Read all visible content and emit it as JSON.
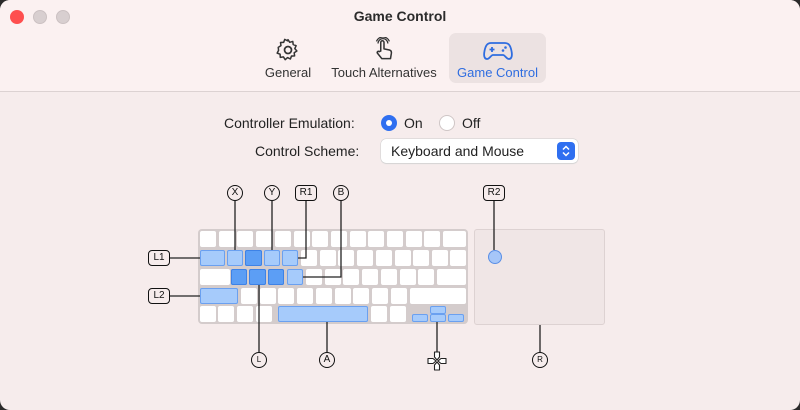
{
  "window": {
    "title": "Game Control"
  },
  "tabs": [
    {
      "label": "General",
      "icon": "gear-icon"
    },
    {
      "label": "Touch Alternatives",
      "icon": "hand-tap-icon"
    },
    {
      "label": "Game Control",
      "icon": "gamecontroller-icon",
      "selected": true
    }
  ],
  "emulation": {
    "label": "Controller Emulation:",
    "options": [
      "On",
      "Off"
    ],
    "selected": "On"
  },
  "scheme": {
    "label": "Control Scheme:",
    "value": "Keyboard and Mouse"
  },
  "mapping": {
    "x": "X",
    "y": "Y",
    "r1": "R1",
    "b": "B",
    "l1": "L1",
    "l2": "L2",
    "l_stick": "L",
    "a": "A",
    "r2": "R2",
    "r_stick": "R"
  },
  "colors": {
    "accent": "#2f6de0",
    "key_highlight": "#a6cbfb",
    "key_pressed": "#5c9ef5",
    "close": "#fe4f4f"
  }
}
